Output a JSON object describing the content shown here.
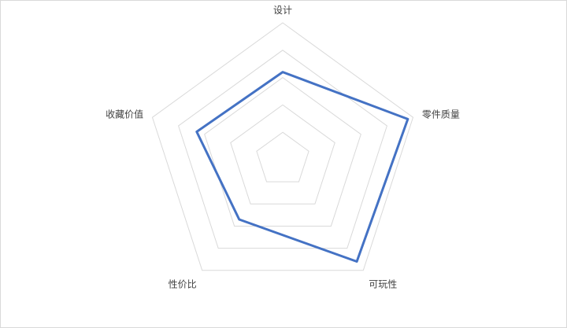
{
  "chart_data": {
    "type": "radar",
    "title": "",
    "axes": [
      "设计",
      "零件质量",
      "可玩性",
      "性价比",
      "收藏价值"
    ],
    "rlim": [
      0,
      5
    ],
    "grid_rings": 5,
    "grid": true,
    "legend": "none",
    "series": [
      {
        "values": [
          3.2,
          4.8,
          4.6,
          2.7,
          3.3
        ]
      }
    ],
    "colors": {
      "series": "#4472c4",
      "grid": "#d9d9d9",
      "label": "#404040"
    }
  }
}
